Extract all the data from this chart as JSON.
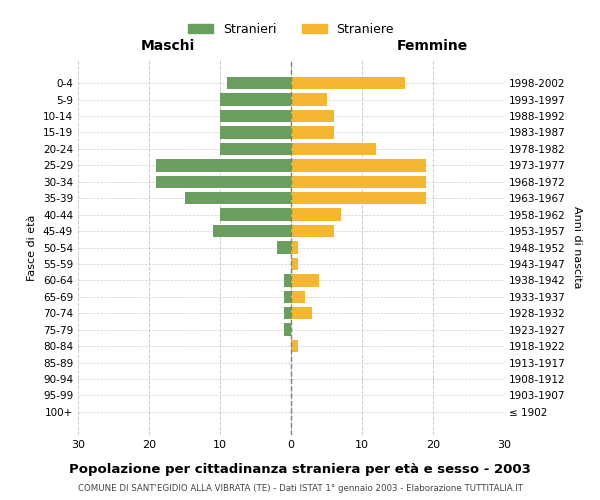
{
  "age_groups": [
    "100+",
    "95-99",
    "90-94",
    "85-89",
    "80-84",
    "75-79",
    "70-74",
    "65-69",
    "60-64",
    "55-59",
    "50-54",
    "45-49",
    "40-44",
    "35-39",
    "30-34",
    "25-29",
    "20-24",
    "15-19",
    "10-14",
    "5-9",
    "0-4"
  ],
  "birth_years": [
    "≤ 1902",
    "1903-1907",
    "1908-1912",
    "1913-1917",
    "1918-1922",
    "1923-1927",
    "1928-1932",
    "1933-1937",
    "1938-1942",
    "1943-1947",
    "1948-1952",
    "1953-1957",
    "1958-1962",
    "1963-1967",
    "1968-1972",
    "1973-1977",
    "1978-1982",
    "1983-1987",
    "1988-1992",
    "1993-1997",
    "1998-2002"
  ],
  "maschi": [
    0,
    0,
    0,
    0,
    0,
    1,
    1,
    1,
    1,
    0,
    2,
    11,
    10,
    15,
    19,
    19,
    10,
    10,
    10,
    10,
    9
  ],
  "femmine": [
    0,
    0,
    0,
    0,
    1,
    0,
    3,
    2,
    4,
    1,
    1,
    6,
    7,
    19,
    19,
    19,
    12,
    6,
    6,
    5,
    16
  ],
  "male_color": "#6a9e5e",
  "female_color": "#f5b731",
  "dashed_line_color": "#888855",
  "xlim": 30,
  "title": "Popolazione per cittadinanza straniera per età e sesso - 2003",
  "subtitle": "COMUNE DI SANT'EGIDIO ALLA VIBRATA (TE) - Dati ISTAT 1° gennaio 2003 - Elaborazione TUTTITALIA.IT",
  "ylabel_left": "Fasce di età",
  "ylabel_right": "Anni di nascita",
  "header_left": "Maschi",
  "header_right": "Femmine",
  "legend_stranieri": "Stranieri",
  "legend_straniere": "Straniere",
  "bg_color": "#ffffff",
  "grid_color": "#cccccc"
}
